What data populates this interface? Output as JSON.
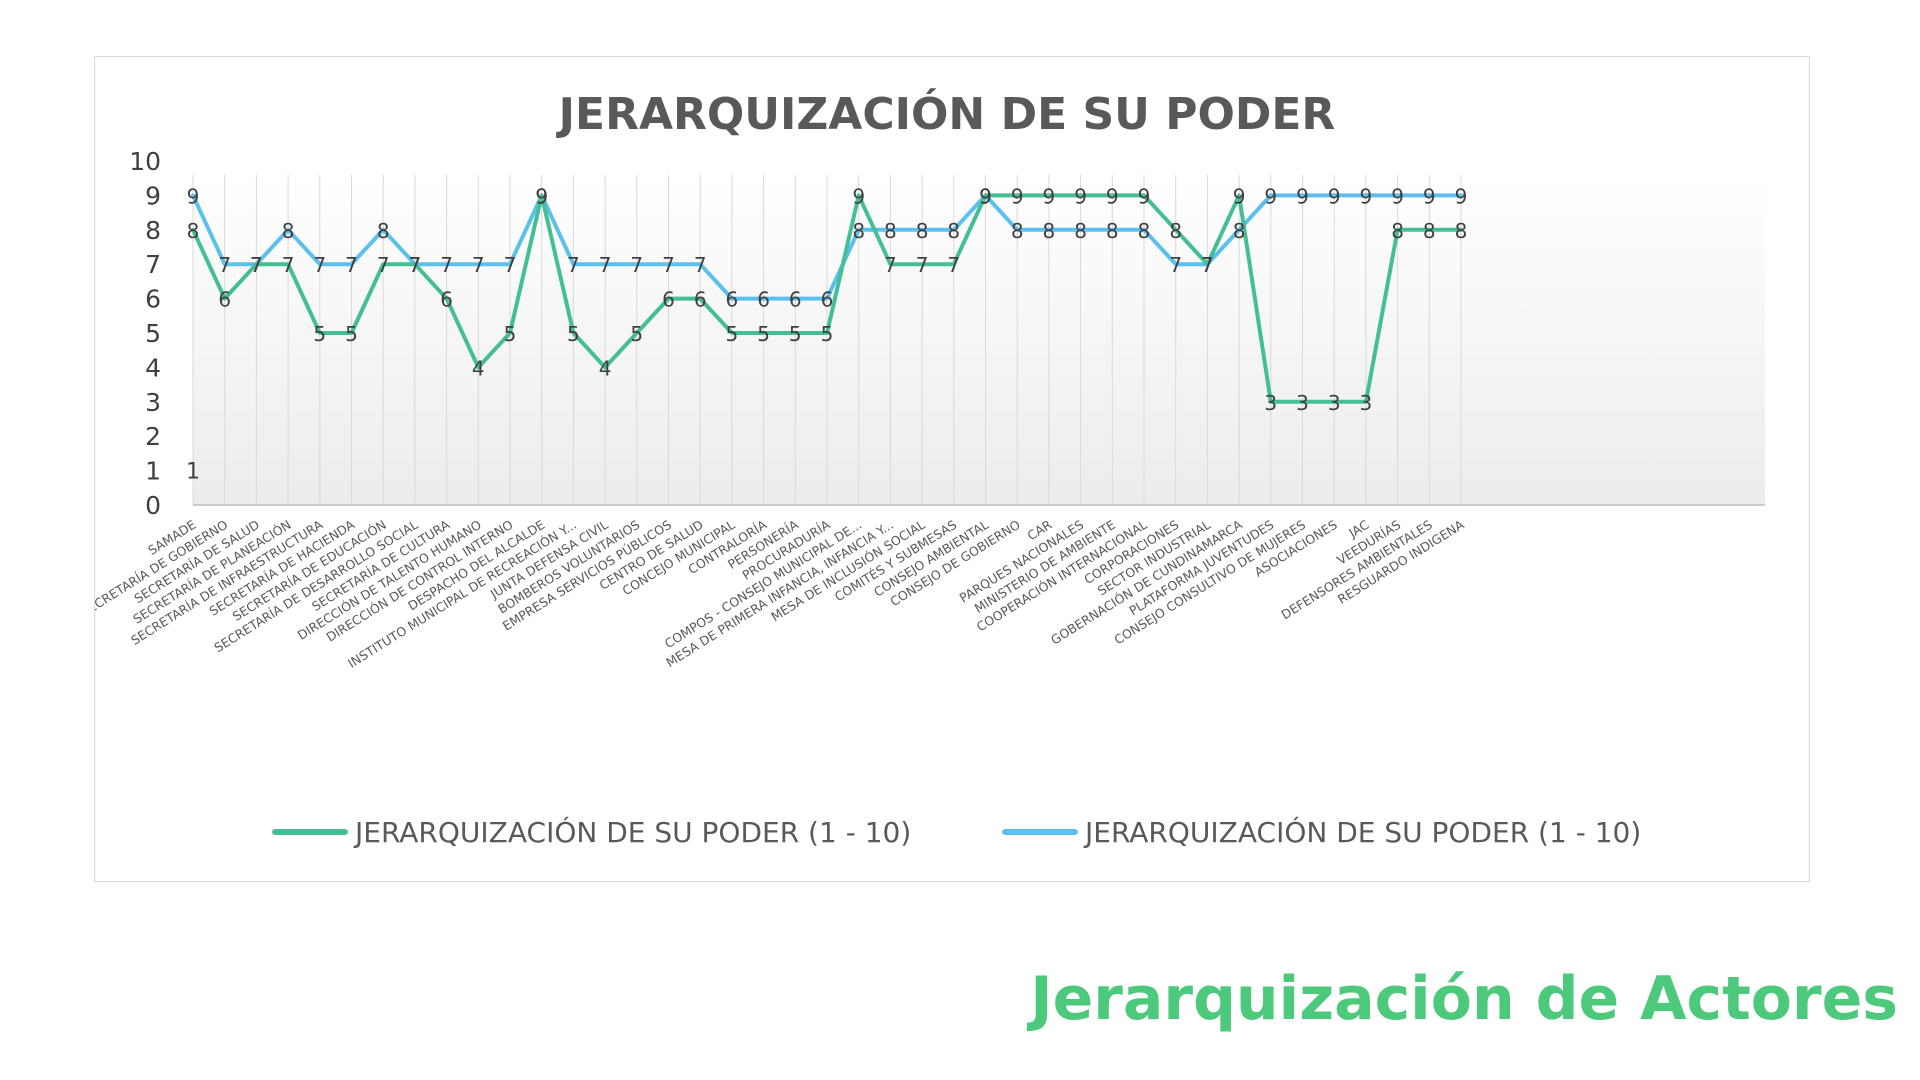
{
  "footer_title": "Jerarquización de Actores",
  "colors": {
    "series_green": "#44bf93",
    "series_blue": "#5bc0ee",
    "text_gray": "#595959",
    "axis_gray": "#404040",
    "gridline": "#d9d9d9"
  },
  "chart_data": {
    "type": "line",
    "title": "JERARQUIZACIÓN DE SU PODER",
    "xlabel": "",
    "ylabel": "",
    "ylim": [
      0,
      10
    ],
    "yticks": [
      "0",
      "1",
      "2",
      "3",
      "4",
      "5",
      "6",
      "7",
      "8",
      "9",
      "10"
    ],
    "grid": "vertical",
    "legend_position": "bottom",
    "stray_label": "1",
    "categories": [
      "SAMADE",
      "SECRETARÍA DE GOBIERNO",
      "SECRETARÍA DE SALUD",
      "SECRETARÍA DE PLANEACIÓN",
      "SECRETARÍA DE INFRAESTRUCTURA",
      "SECRETARÍA DE HACIENDA",
      "SECRETARÍA DE EDUCACIÓN",
      "SECRETARÍA DE DESARROLLO SOCIAL",
      "SECRETARÍA DE CULTURA",
      "DIRECCIÓN DE TALENTO HUMANO",
      "DIRECCIÓN DE CONTROL INTERNO",
      "DESPACHO DEL ALCALDE",
      "INSTITUTO MUNICIPAL DE RECREACIÓN Y...",
      "JUNTA DEFENSA CIVIL",
      "BOMBEROS VOLUNTARIOS",
      "EMPRESA SERVICIOS PÚBLICOS",
      "CENTRO DE SALUD",
      "CONCEJO MUNICIPAL",
      "CONTRALORÍA",
      "PERSONERÍA",
      "PROCURADURÍA",
      "COMPOS - CONSEJO MUNICIPAL DE...",
      "MESA DE PRIMERA INFANCIA, INFANCIA Y...",
      "MESA DE INCLUSIÓN SOCIAL",
      "COMITÉS Y SUBMESAS",
      "CONSEJO AMBIENTAL",
      "CONSEJO DE GOBIERNO",
      "CAR",
      "PARQUES NACIONALES",
      "MINISTERIO DE AMBIENTE",
      "COOPERACIÓN INTERNACIONAL",
      "CORPORACIONES",
      "SECTOR INDUSTRIAL",
      "GOBERNACIÓN DE CUNDINAMARCA",
      "PLATAFORMA JUVENTUDES",
      "CONSEJO CONSULTIVO DE MUJERES",
      "ASOCIACIONES",
      "JAC",
      "VEEDURÍAS",
      "DEFENSORES AMBIENTALES",
      "RESGUARDO INDIGENA"
    ],
    "series": [
      {
        "name": "JERARQUIZACIÓN DE SU PODER (1 - 10)",
        "values": [
          8,
          6,
          7,
          7,
          5,
          5,
          7,
          7,
          6,
          4,
          5,
          9,
          5,
          4,
          5,
          6,
          6,
          5,
          5,
          5,
          5,
          9,
          7,
          7,
          7,
          9,
          9,
          9,
          9,
          9,
          9,
          8,
          7,
          9,
          3,
          3,
          3,
          3,
          8,
          8,
          8
        ]
      },
      {
        "name": "JERARQUIZACIÓN DE SU PODER (1 - 10)",
        "values": [
          9,
          7,
          7,
          8,
          7,
          7,
          8,
          7,
          7,
          7,
          7,
          9,
          7,
          7,
          7,
          7,
          7,
          6,
          6,
          6,
          6,
          8,
          8,
          8,
          8,
          9,
          8,
          8,
          8,
          8,
          8,
          7,
          7,
          8,
          9,
          9,
          9,
          9,
          9,
          9,
          9
        ]
      }
    ]
  }
}
